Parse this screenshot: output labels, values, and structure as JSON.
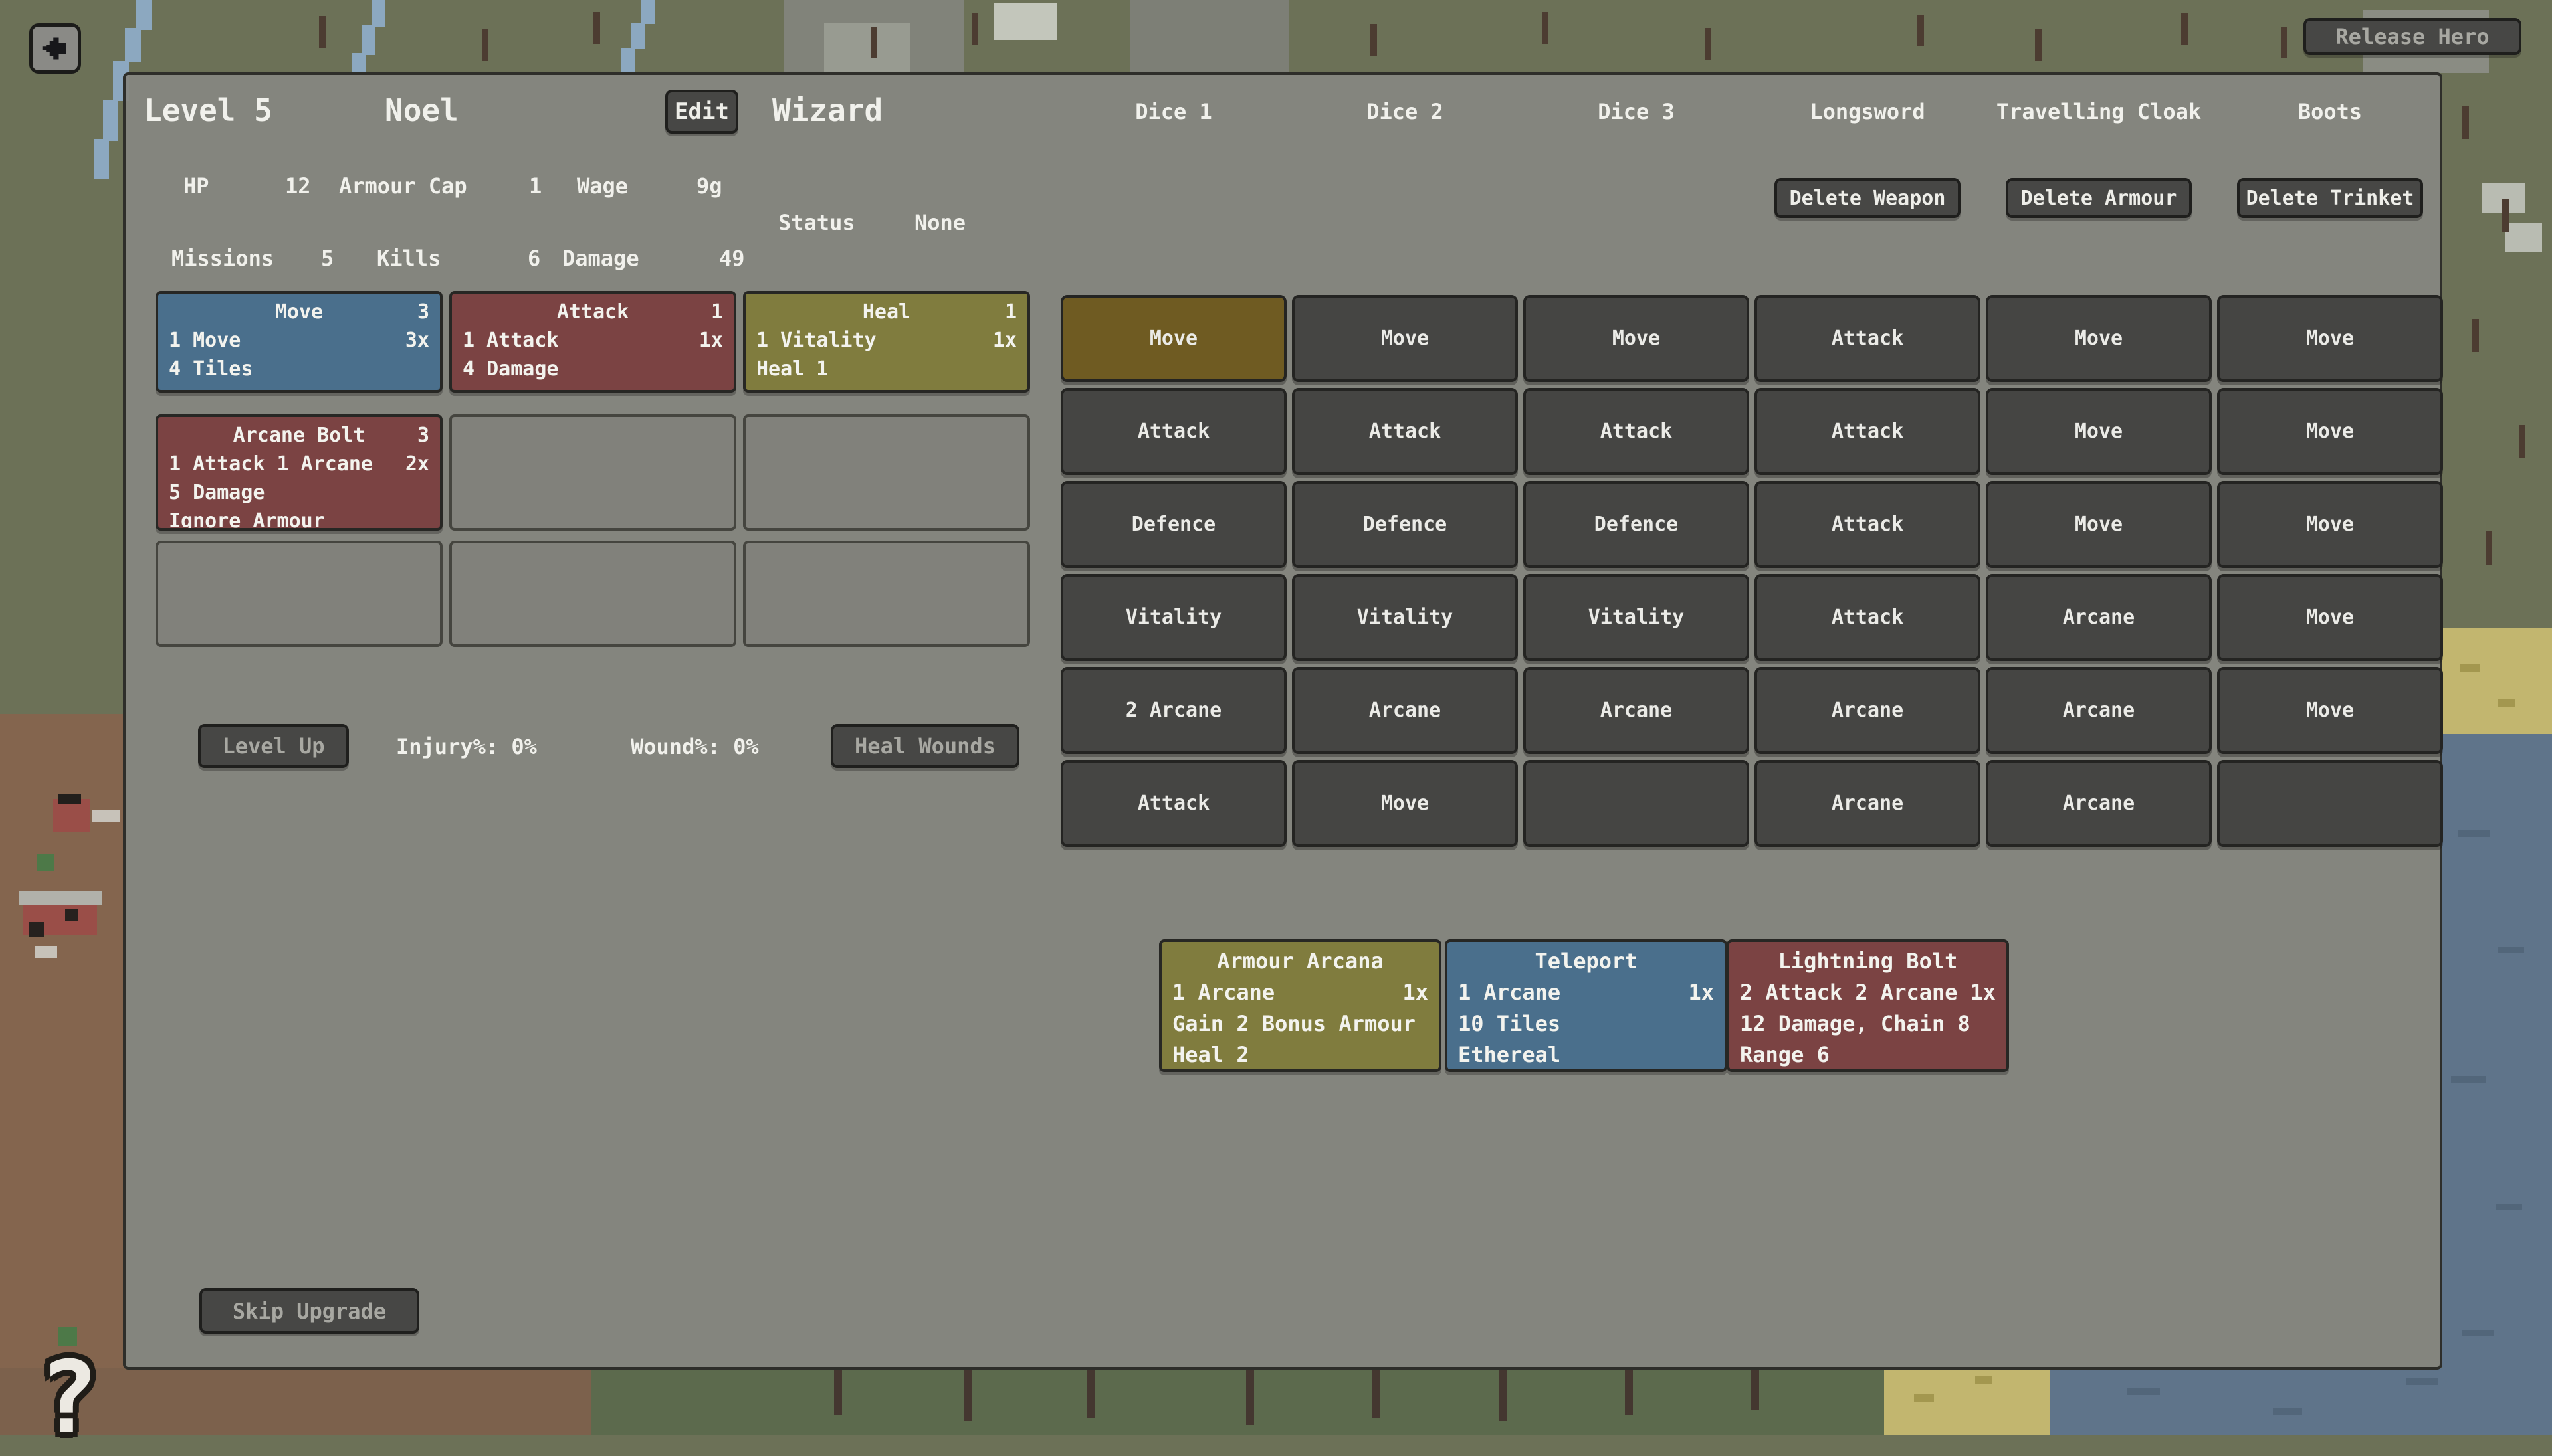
{
  "top_bar": {
    "release_hero": "Release Hero"
  },
  "header": {
    "level": "Level 5",
    "name": "Noel",
    "edit": "Edit",
    "class": "Wizard"
  },
  "stats": {
    "hp_label": "HP",
    "hp": "12",
    "armour_cap_label": "Armour Cap",
    "armour_cap": "1",
    "wage_label": "Wage",
    "wage": "9g",
    "status_label": "Status",
    "status": "None",
    "missions_label": "Missions",
    "missions": "5",
    "kills_label": "Kills",
    "kills": "6",
    "damage_label": "Damage",
    "damage": "49"
  },
  "columns": [
    "Dice 1",
    "Dice 2",
    "Dice 3",
    "Longsword",
    "Travelling Cloak",
    "Boots"
  ],
  "equipment_buttons": {
    "delete_weapon": "Delete Weapon",
    "delete_armour": "Delete Armour",
    "delete_trinket": "Delete Trinket"
  },
  "ability_slots": [
    {
      "title": "Move",
      "count": "3",
      "cost": "1 Move",
      "uses": "3x",
      "lines": [
        "4 Tiles"
      ],
      "color": "blue"
    },
    {
      "title": "Attack",
      "count": "1",
      "cost": "1 Attack",
      "uses": "1x",
      "lines": [
        "4 Damage"
      ],
      "color": "red"
    },
    {
      "title": "Heal",
      "count": "1",
      "cost": "1 Vitality",
      "uses": "1x",
      "lines": [
        "Heal 1"
      ],
      "color": "olive"
    },
    {
      "title": "Arcane Bolt",
      "count": "3",
      "cost": "1 Attack 1 Arcane",
      "uses": "2x",
      "lines": [
        "5 Damage",
        "Ignore Armour"
      ],
      "color": "red"
    },
    null,
    null,
    null,
    null,
    null
  ],
  "dice_grid": {
    "rows": [
      [
        "Move",
        "Move",
        "Move",
        "Attack",
        "Move",
        "Move"
      ],
      [
        "Attack",
        "Attack",
        "Attack",
        "Attack",
        "Move",
        "Move"
      ],
      [
        "Defence",
        "Defence",
        "Defence",
        "Attack",
        "Move",
        "Move"
      ],
      [
        "Vitality",
        "Vitality",
        "Vitality",
        "Attack",
        "Arcane",
        "Move"
      ],
      [
        "2 Arcane",
        "Arcane",
        "Arcane",
        "Arcane",
        "Arcane",
        "Move"
      ],
      [
        "Attack",
        "Move",
        "",
        "Arcane",
        "Arcane",
        ""
      ]
    ],
    "selected": {
      "row": 0,
      "col": 0
    }
  },
  "level_row": {
    "level_up": "Level Up",
    "injury": "Injury%: 0%",
    "wound": "Wound%: 0%",
    "heal_wounds": "Heal Wounds"
  },
  "upgrade_cards": [
    {
      "title": "Armour Arcana",
      "cost": "1 Arcane",
      "uses": "1x",
      "lines": [
        "Gain 2 Bonus Armour",
        "Heal 2"
      ],
      "color": "olive"
    },
    {
      "title": "Teleport",
      "cost": "1 Arcane",
      "uses": "1x",
      "lines": [
        "10 Tiles",
        "Ethereal"
      ],
      "color": "blue"
    },
    {
      "title": "Lightning Bolt",
      "cost": "2 Attack 2 Arcane",
      "uses": "1x",
      "lines": [
        "12 Damage, Chain 8",
        "Range 6"
      ],
      "color": "red"
    }
  ],
  "footer": {
    "skip_upgrade": "Skip Upgrade",
    "help": "?"
  },
  "colors": {
    "move_blue": "#4a6f8c",
    "attack_red": "#7b4343",
    "heal_olive": "#807c3e",
    "selected_gold": "#6f5b22",
    "cell_grey": "#454543",
    "panel_grey": "#868681"
  }
}
